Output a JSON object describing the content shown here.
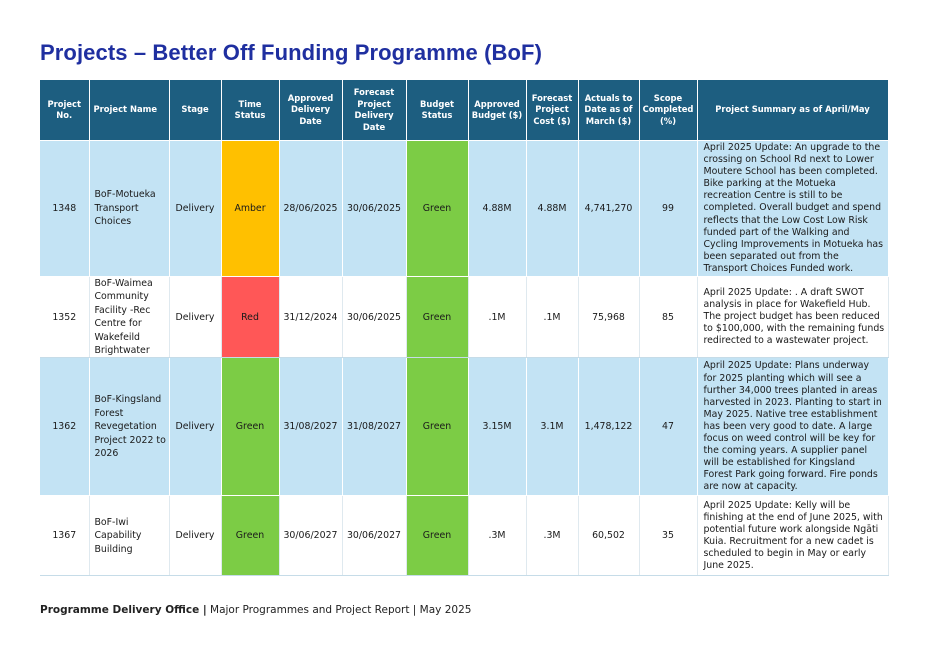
{
  "page_title": "Projects – Better Off Funding Programme (BoF)",
  "colors": {
    "title": "#1f2fa0",
    "header_bg": "#1d5e80",
    "row_alt": "#c3e3f4",
    "amber": "#ffc000",
    "red": "#ff5757",
    "green": "#7ccc45"
  },
  "table": {
    "headers": [
      "Project No.",
      "Project Name",
      "Stage",
      "Time Status",
      "Approved Delivery Date",
      "Forecast Project Delivery Date",
      "Budget Status",
      "Approved Budget ($)",
      "Forecast Project Cost ($)",
      "Actuals to Date as of March ($)",
      "Scope Completed (%)",
      "Project Summary as of April/May"
    ],
    "rows": [
      {
        "no": "1348",
        "name": "BoF-Motueka Transport Choices",
        "stage": "Delivery",
        "time_status": "Amber",
        "approved_date": "28/06/2025",
        "forecast_date": "30/06/2025",
        "budget_status": "Green",
        "approved_budget": "4.88M",
        "forecast_cost": "4.88M",
        "actuals": "4,741,270",
        "scope": "99",
        "summary": "April 2025 Update: An upgrade to the crossing on School Rd next to Lower Moutere School has been completed. Bike parking at the Motueka recreation Centre is still to be completed. Overall budget and spend reflects that the Low Cost Low Risk funded part of the Walking and Cycling Improvements in Motueka has been separated out from the Transport Choices Funded work."
      },
      {
        "no": "1352",
        "name": "BoF-Waimea Community Facility -Rec Centre for Wakefeild Brightwater",
        "stage": "Delivery",
        "time_status": "Red",
        "approved_date": "31/12/2024",
        "forecast_date": "30/06/2025",
        "budget_status": "Green",
        "approved_budget": ".1M",
        "forecast_cost": ".1M",
        "actuals": "75,968",
        "scope": "85",
        "summary": "April 2025 Update: . A draft SWOT analysis in place for Wakefield Hub. The project budget has been reduced to $100,000, with the remaining funds redirected to a wastewater project."
      },
      {
        "no": "1362",
        "name": "BoF-Kingsland Forest Revegetation Project 2022 to 2026",
        "stage": "Delivery",
        "time_status": "Green",
        "approved_date": "31/08/2027",
        "forecast_date": "31/08/2027",
        "budget_status": "Green",
        "approved_budget": "3.15M",
        "forecast_cost": "3.1M",
        "actuals": "1,478,122",
        "scope": "47",
        "summary": "April 2025 Update: Plans underway for 2025 planting which will see a further 34,000 trees planted in areas harvested in 2023. Planting to start in May 2025. Native tree establishment has been very good to date. A large focus on weed control will be key for the coming years. A supplier panel will be established for Kingsland Forest Park going forward. Fire ponds are now at capacity."
      },
      {
        "no": "1367",
        "name": "BoF-Iwi Capability Building",
        "stage": "Delivery",
        "time_status": "Green",
        "approved_date": "30/06/2027",
        "forecast_date": "30/06/2027",
        "budget_status": "Green",
        "approved_budget": ".3M",
        "forecast_cost": ".3M",
        "actuals": "60,502",
        "scope": "35",
        "summary": "April 2025 Update: Kelly will be finishing at the end of June 2025, with potential future work alongside Ngāti Kuia. Recruitment for a new cadet is scheduled to begin in May or early June 2025."
      }
    ]
  },
  "footer": {
    "office": "Programme Delivery Office |",
    "report": " Major Programmes and Project Report | May 2025"
  }
}
